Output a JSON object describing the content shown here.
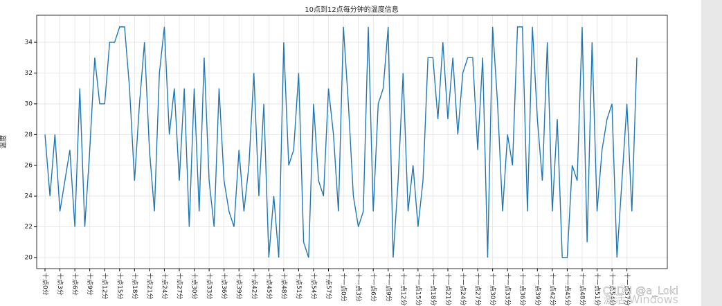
{
  "chart_data": {
    "type": "line",
    "title": "10点到12点每分钟的温度信息",
    "ylabel": "温度",
    "categories": [
      "十点0分",
      null,
      null,
      "十点3分",
      null,
      null,
      "十点6分",
      null,
      null,
      "十点9分",
      null,
      null,
      "十点12分",
      null,
      null,
      "十点15分",
      null,
      null,
      "十点18分",
      null,
      null,
      "十点21分",
      null,
      null,
      "十点24分",
      null,
      null,
      "十点27分",
      null,
      null,
      "十点30分",
      null,
      null,
      "十点33分",
      null,
      null,
      "十点36分",
      null,
      null,
      "十点39分",
      null,
      null,
      "十点42分",
      null,
      null,
      "十点45分",
      null,
      null,
      "十点48分",
      null,
      null,
      "十点51分",
      null,
      null,
      "十点54分",
      null,
      null,
      "十点57分",
      null,
      null,
      "十一点0分",
      null,
      null,
      "十一点3分",
      null,
      null,
      "十一点6分",
      null,
      null,
      "十一点9分",
      null,
      null,
      "十一点12分",
      null,
      null,
      "十一点15分",
      null,
      null,
      "十一点18分",
      null,
      null,
      "十一点21分",
      null,
      null,
      "十一点24分",
      null,
      null,
      "十一点27分",
      null,
      null,
      "十一点30分",
      null,
      null,
      "十一点33分",
      null,
      null,
      "十一点36分",
      null,
      null,
      "十一点39分",
      null,
      null,
      "十一点42分",
      null,
      null,
      "十一点45分",
      null,
      null,
      "十一点48分",
      null,
      null,
      "十一点51分",
      null,
      null,
      "十一点54分",
      null,
      null,
      "十一点57分",
      null,
      null
    ],
    "series": [
      {
        "name": "温度",
        "color": "#1f77b4",
        "values": [
          28,
          24,
          28,
          23,
          25,
          27,
          22,
          31,
          22,
          27,
          33,
          30,
          30,
          34,
          34,
          35,
          35,
          31,
          25,
          30,
          34,
          27,
          23,
          32,
          35,
          28,
          31,
          25,
          31,
          22,
          31,
          23,
          33,
          25,
          22,
          31,
          25,
          23,
          22,
          27,
          23,
          26,
          32,
          24,
          30,
          20,
          24,
          20,
          34,
          26,
          27,
          32,
          21,
          20,
          30,
          25,
          24,
          31,
          28,
          23,
          35,
          30,
          24,
          22,
          23,
          35,
          23,
          30,
          31,
          35,
          20,
          25,
          32,
          23,
          26,
          22,
          25,
          33,
          33,
          29,
          34,
          29,
          33,
          28,
          32,
          33,
          33,
          27,
          33,
          20,
          35,
          30,
          23,
          28,
          26,
          35,
          35,
          23,
          35,
          29,
          25,
          34,
          23,
          29,
          20,
          20,
          26,
          25,
          35,
          21,
          34,
          23,
          27,
          29,
          30,
          20,
          25,
          30,
          23,
          33
        ]
      }
    ],
    "ylim": [
      19.28,
      35.76
    ],
    "yticks": [
      20,
      22,
      24,
      26,
      28,
      30,
      32,
      34
    ],
    "grid": true
  },
  "overlay": {
    "watermark": "CSDN @a_Loki",
    "activation": "激活 Windows"
  }
}
